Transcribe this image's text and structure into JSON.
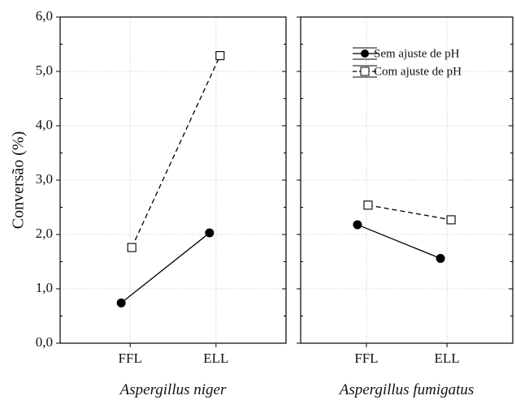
{
  "chart_data": {
    "type": "line",
    "ylabel": "Conversão (%)",
    "ylim": [
      0,
      6
    ],
    "yticks": [
      "0,0",
      "1,0",
      "2,0",
      "3,0",
      "4,0",
      "5,0",
      "6,0"
    ],
    "grid": true,
    "legend": {
      "placement": "top-right of right panel",
      "entries": [
        "Sem ajuste de pH",
        "Com ajuste de pH"
      ]
    },
    "panels": [
      {
        "title": "Aspergillus niger",
        "categories": [
          "FFL",
          "ELL"
        ],
        "series": [
          {
            "name": "Sem ajuste de pH",
            "values": [
              0.74,
              2.03
            ],
            "style": "solid",
            "marker": "filled-circle",
            "color": "#000000"
          },
          {
            "name": "Com ajuste de pH",
            "values": [
              1.76,
              5.29
            ],
            "style": "dashed",
            "marker": "open-square",
            "color": "#000000"
          }
        ]
      },
      {
        "title": "Aspergillus fumigatus",
        "categories": [
          "FFL",
          "ELL"
        ],
        "series": [
          {
            "name": "Sem ajuste de pH",
            "values": [
              2.18,
              1.56
            ],
            "style": "solid",
            "marker": "filled-circle",
            "color": "#000000"
          },
          {
            "name": "Com ajuste de pH",
            "values": [
              2.54,
              2.27
            ],
            "style": "dashed",
            "marker": "open-square",
            "color": "#000000"
          }
        ]
      }
    ]
  }
}
